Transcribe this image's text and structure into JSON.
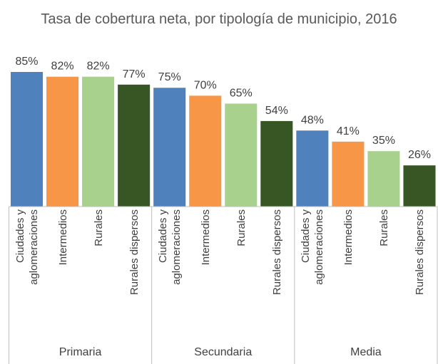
{
  "chart_data": {
    "type": "bar",
    "title": "Tasa de cobertura neta, por tipología de municipio, 2016",
    "categories": [
      "Primaria",
      "Secundaria",
      "Media"
    ],
    "series": [
      {
        "name": "Ciudades y aglomeraciones",
        "color": "#4f81bd",
        "values": [
          85,
          75,
          48
        ],
        "value_labels": [
          "85%",
          "75%",
          "48%"
        ]
      },
      {
        "name": "Intermedios",
        "color": "#f79646",
        "values": [
          82,
          70,
          41
        ],
        "value_labels": [
          "82%",
          "70%",
          "41%"
        ]
      },
      {
        "name": "Rurales",
        "color": "#a9d18e",
        "values": [
          82,
          65,
          35
        ],
        "value_labels": [
          "82%",
          "65%",
          "35%"
        ]
      },
      {
        "name": "Rurales dispersos",
        "color": "#375623",
        "values": [
          77,
          54,
          26
        ],
        "value_labels": [
          "77%",
          "54%",
          "26%"
        ]
      }
    ]
  }
}
